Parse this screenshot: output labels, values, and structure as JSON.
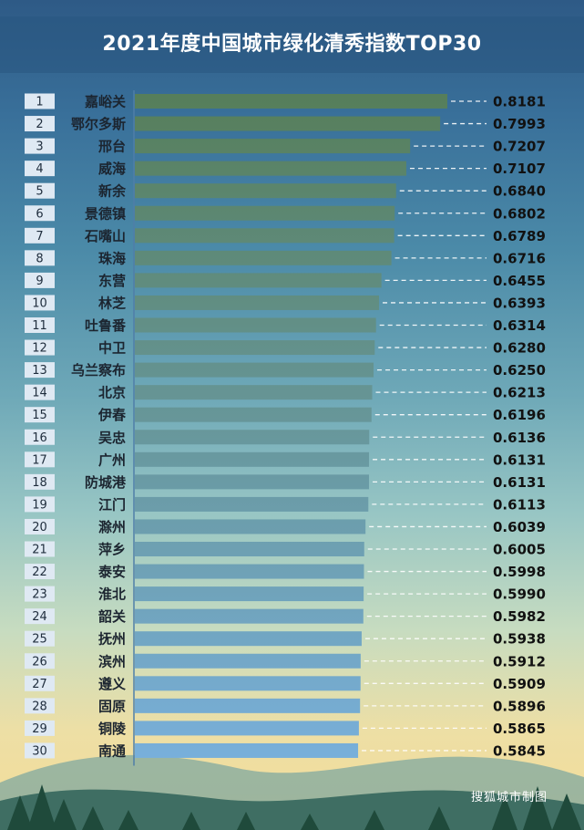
{
  "page": {
    "title": "2021年度中国城市绿化清秀指数TOP30",
    "credit": "搜狐城市制图"
  },
  "colors": {
    "bar_top": "#567e5a",
    "bar_bottom": "#79b0dc",
    "rank_box": "#dfe9f3",
    "axis_line": "#4f7ea8"
  },
  "chart_data": {
    "type": "bar",
    "orientation": "horizontal",
    "title": "2021年度中国城市绿化清秀指数TOP30",
    "xlim": [
      0,
      0.8181
    ],
    "ranks": [
      "1",
      "2",
      "3",
      "4",
      "5",
      "6",
      "7",
      "8",
      "9",
      "10",
      "11",
      "12",
      "13",
      "14",
      "15",
      "16",
      "17",
      "18",
      "19",
      "20",
      "21",
      "22",
      "23",
      "24",
      "25",
      "26",
      "27",
      "28",
      "29",
      "30"
    ],
    "categories": [
      "嘉峪关",
      "鄂尔多斯",
      "邢台",
      "威海",
      "新余",
      "景德镇",
      "石嘴山",
      "珠海",
      "东营",
      "林芝",
      "吐鲁番",
      "中卫",
      "乌兰察布",
      "北京",
      "伊春",
      "吴忠",
      "广州",
      "防城港",
      "江门",
      "滁州",
      "萍乡",
      "泰安",
      "淮北",
      "韶关",
      "抚州",
      "滨州",
      "遵义",
      "固原",
      "铜陵",
      "南通"
    ],
    "values": [
      0.8181,
      0.7993,
      0.7207,
      0.7107,
      0.684,
      0.6802,
      0.6789,
      0.6716,
      0.6455,
      0.6393,
      0.6314,
      0.628,
      0.625,
      0.6213,
      0.6196,
      0.6136,
      0.6131,
      0.6131,
      0.6113,
      0.6039,
      0.6005,
      0.5998,
      0.599,
      0.5982,
      0.5938,
      0.5912,
      0.5909,
      0.5896,
      0.5865,
      0.5845
    ],
    "value_labels": [
      "0.8181",
      "0.7993",
      "0.7207",
      "0.7107",
      "0.6840",
      "0.6802",
      "0.6789",
      "0.6716",
      "0.6455",
      "0.6393",
      "0.6314",
      "0.6280",
      "0.6250",
      "0.6213",
      "0.6196",
      "0.6136",
      "0.6131",
      "0.6131",
      "0.6113",
      "0.6039",
      "0.6005",
      "0.5998",
      "0.5990",
      "0.5982",
      "0.5938",
      "0.5912",
      "0.5909",
      "0.5896",
      "0.5865",
      "0.5845"
    ],
    "grid": false,
    "legend": "none"
  }
}
